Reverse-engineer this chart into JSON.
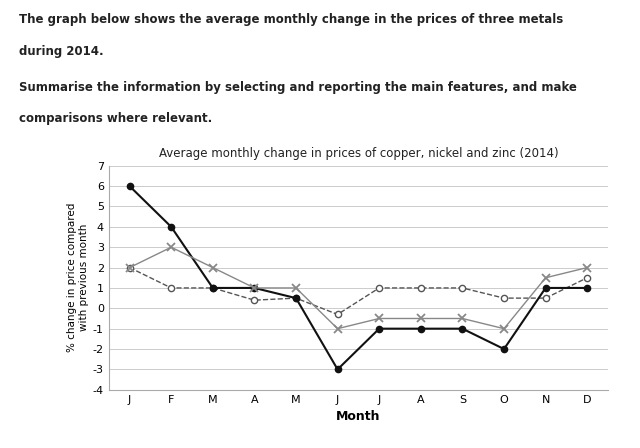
{
  "title": "Average monthly change in prices of copper, nickel and zinc (2014)",
  "xlabel": "Month",
  "ylabel": "% change in price compared\nwith previous month",
  "question_line1": "The graph below shows the average monthly change in the prices of three metals",
  "question_line2": "during 2014.",
  "question_line3": "Summarise the information by selecting and reporting the main features, and make",
  "question_line4": "comparisons where relevant.",
  "months": [
    "J",
    "F",
    "M",
    "A",
    "M",
    "J",
    "J",
    "A",
    "S",
    "O",
    "N",
    "D"
  ],
  "copper": [
    2,
    1,
    1,
    0.4,
    0.5,
    -0.3,
    1.0,
    1.0,
    1.0,
    0.5,
    0.5,
    1.5
  ],
  "nickel": [
    6,
    4,
    1,
    1,
    0.5,
    -3,
    -1,
    -1,
    -1,
    -2,
    1,
    1
  ],
  "zinc": [
    2,
    3,
    2,
    1,
    1,
    -1,
    -0.5,
    -0.5,
    -0.5,
    -1,
    1.5,
    2
  ],
  "ylim": [
    -4,
    7
  ],
  "yticks": [
    -4,
    -3,
    -2,
    -1,
    0,
    1,
    2,
    3,
    4,
    5,
    6,
    7
  ],
  "copper_color": "#555555",
  "nickel_color": "#111111",
  "zinc_color": "#888888",
  "bg_color": "#ffffff"
}
